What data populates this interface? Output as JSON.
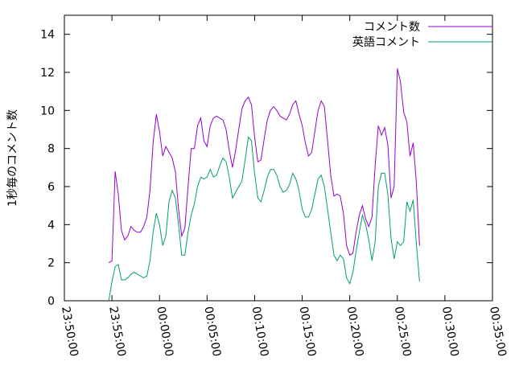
{
  "chart_data": {
    "type": "line",
    "title": "",
    "xlabel": "",
    "ylabel": "1秒毎のコメント数",
    "ylim": [
      0,
      15
    ],
    "y_ticks": [
      0,
      2,
      4,
      6,
      8,
      10,
      12,
      14
    ],
    "x_ticks": [
      "23:50:00",
      "23:55:00",
      "00:00:00",
      "00:05:00",
      "00:10:00",
      "00:15:00",
      "00:20:00",
      "00:25:00",
      "00:30:00",
      "00:35:00"
    ],
    "xlim": [
      "23:50:00",
      "00:35:00"
    ],
    "legend_position": "top-right",
    "grid": false,
    "series": [
      {
        "name": "コメント数",
        "color": "#9400d3",
        "points": [
          [
            "23:54:40",
            2.0
          ],
          [
            "23:55:00",
            2.1
          ],
          [
            "23:55:20",
            6.8
          ],
          [
            "23:55:40",
            5.6
          ],
          [
            "23:56:00",
            3.7
          ],
          [
            "23:56:20",
            3.2
          ],
          [
            "23:56:40",
            3.4
          ],
          [
            "23:57:00",
            3.9
          ],
          [
            "23:57:20",
            3.7
          ],
          [
            "23:57:40",
            3.6
          ],
          [
            "23:58:00",
            3.6
          ],
          [
            "23:58:20",
            3.9
          ],
          [
            "23:58:40",
            4.4
          ],
          [
            "23:59:00",
            5.8
          ],
          [
            "23:59:20",
            8.3
          ],
          [
            "23:59:40",
            9.8
          ],
          [
            "00:00:00",
            8.9
          ],
          [
            "00:00:20",
            7.6
          ],
          [
            "00:00:40",
            8.1
          ],
          [
            "00:01:00",
            7.8
          ],
          [
            "00:01:20",
            7.5
          ],
          [
            "00:01:40",
            6.8
          ],
          [
            "00:02:00",
            4.8
          ],
          [
            "00:02:20",
            3.4
          ],
          [
            "00:02:40",
            3.8
          ],
          [
            "00:03:00",
            6.0
          ],
          [
            "00:03:20",
            8.0
          ],
          [
            "00:03:40",
            8.0
          ],
          [
            "00:04:00",
            9.2
          ],
          [
            "00:04:20",
            9.6
          ],
          [
            "00:04:40",
            8.4
          ],
          [
            "00:05:00",
            8.1
          ],
          [
            "00:05:20",
            9.2
          ],
          [
            "00:05:40",
            9.6
          ],
          [
            "00:06:00",
            9.7
          ],
          [
            "00:06:20",
            9.6
          ],
          [
            "00:06:40",
            9.5
          ],
          [
            "00:07:00",
            9.0
          ],
          [
            "00:07:20",
            7.9
          ],
          [
            "00:07:40",
            7.0
          ],
          [
            "00:08:00",
            7.9
          ],
          [
            "00:08:20",
            9.0
          ],
          [
            "00:08:40",
            10.1
          ],
          [
            "00:09:00",
            10.5
          ],
          [
            "00:09:20",
            10.7
          ],
          [
            "00:09:40",
            10.3
          ],
          [
            "00:10:00",
            8.6
          ],
          [
            "00:10:20",
            7.3
          ],
          [
            "00:10:40",
            7.4
          ],
          [
            "00:11:00",
            8.5
          ],
          [
            "00:11:20",
            9.5
          ],
          [
            "00:11:40",
            10.0
          ],
          [
            "00:12:00",
            10.2
          ],
          [
            "00:12:20",
            10.0
          ],
          [
            "00:12:40",
            9.7
          ],
          [
            "00:13:00",
            9.6
          ],
          [
            "00:13:20",
            9.5
          ],
          [
            "00:13:40",
            9.8
          ],
          [
            "00:14:00",
            10.3
          ],
          [
            "00:14:20",
            10.5
          ],
          [
            "00:14:40",
            9.8
          ],
          [
            "00:15:00",
            9.2
          ],
          [
            "00:15:20",
            8.3
          ],
          [
            "00:15:40",
            7.6
          ],
          [
            "00:16:00",
            7.8
          ],
          [
            "00:16:20",
            8.9
          ],
          [
            "00:16:40",
            10.0
          ],
          [
            "00:17:00",
            10.5
          ],
          [
            "00:17:20",
            10.2
          ],
          [
            "00:17:40",
            8.4
          ],
          [
            "00:18:00",
            6.6
          ],
          [
            "00:18:20",
            5.5
          ],
          [
            "00:18:40",
            5.6
          ],
          [
            "00:19:00",
            5.5
          ],
          [
            "00:19:20",
            4.6
          ],
          [
            "00:19:40",
            2.9
          ],
          [
            "00:20:00",
            2.4
          ],
          [
            "00:20:20",
            2.5
          ],
          [
            "00:20:40",
            3.6
          ],
          [
            "00:21:00",
            4.5
          ],
          [
            "00:21:20",
            5.0
          ],
          [
            "00:21:40",
            4.3
          ],
          [
            "00:22:00",
            3.9
          ],
          [
            "00:22:20",
            4.4
          ],
          [
            "00:22:40",
            7.1
          ],
          [
            "00:23:00",
            9.2
          ],
          [
            "00:23:20",
            8.7
          ],
          [
            "00:23:40",
            9.1
          ],
          [
            "00:24:00",
            8.2
          ],
          [
            "00:24:20",
            5.4
          ],
          [
            "00:24:40",
            6.0
          ],
          [
            "00:25:00",
            12.2
          ],
          [
            "00:25:20",
            11.5
          ],
          [
            "00:25:40",
            9.9
          ],
          [
            "00:26:00",
            9.4
          ],
          [
            "00:26:20",
            7.6
          ],
          [
            "00:26:40",
            8.3
          ],
          [
            "00:27:00",
            6.2
          ],
          [
            "00:27:20",
            2.9
          ]
        ]
      },
      {
        "name": "英語コメント",
        "color": "#009e73",
        "points": [
          [
            "23:54:40",
            0.0
          ],
          [
            "23:55:00",
            1.0
          ],
          [
            "23:55:20",
            1.8
          ],
          [
            "23:55:40",
            1.9
          ],
          [
            "23:56:00",
            1.1
          ],
          [
            "23:56:20",
            1.1
          ],
          [
            "23:56:40",
            1.2
          ],
          [
            "23:57:00",
            1.4
          ],
          [
            "23:57:20",
            1.5
          ],
          [
            "23:57:40",
            1.4
          ],
          [
            "23:58:00",
            1.3
          ],
          [
            "23:58:20",
            1.2
          ],
          [
            "23:58:40",
            1.3
          ],
          [
            "23:59:00",
            2.1
          ],
          [
            "23:59:20",
            3.6
          ],
          [
            "23:59:40",
            4.6
          ],
          [
            "00:00:00",
            4.0
          ],
          [
            "00:00:20",
            2.9
          ],
          [
            "00:00:40",
            3.4
          ],
          [
            "00:01:00",
            5.2
          ],
          [
            "00:01:20",
            5.8
          ],
          [
            "00:01:40",
            5.4
          ],
          [
            "00:02:00",
            4.0
          ],
          [
            "00:02:20",
            2.4
          ],
          [
            "00:02:40",
            2.4
          ],
          [
            "00:03:00",
            3.6
          ],
          [
            "00:03:20",
            4.5
          ],
          [
            "00:03:40",
            5.1
          ],
          [
            "00:04:00",
            6.0
          ],
          [
            "00:04:20",
            6.5
          ],
          [
            "00:04:40",
            6.4
          ],
          [
            "00:05:00",
            6.5
          ],
          [
            "00:05:20",
            6.9
          ],
          [
            "00:05:40",
            6.5
          ],
          [
            "00:06:00",
            6.6
          ],
          [
            "00:06:20",
            7.1
          ],
          [
            "00:06:40",
            7.5
          ],
          [
            "00:07:00",
            7.3
          ],
          [
            "00:07:20",
            6.5
          ],
          [
            "00:07:40",
            5.4
          ],
          [
            "00:08:00",
            5.7
          ],
          [
            "00:08:20",
            6.0
          ],
          [
            "00:08:40",
            6.3
          ],
          [
            "00:09:00",
            7.4
          ],
          [
            "00:09:20",
            8.6
          ],
          [
            "00:09:40",
            8.4
          ],
          [
            "00:10:00",
            6.7
          ],
          [
            "00:10:20",
            5.4
          ],
          [
            "00:10:40",
            5.2
          ],
          [
            "00:11:00",
            5.8
          ],
          [
            "00:11:20",
            6.5
          ],
          [
            "00:11:40",
            6.9
          ],
          [
            "00:12:00",
            6.9
          ],
          [
            "00:12:20",
            6.6
          ],
          [
            "00:12:40",
            6.0
          ],
          [
            "00:13:00",
            5.7
          ],
          [
            "00:13:20",
            5.8
          ],
          [
            "00:13:40",
            6.1
          ],
          [
            "00:14:00",
            6.7
          ],
          [
            "00:14:20",
            6.4
          ],
          [
            "00:14:40",
            5.8
          ],
          [
            "00:15:00",
            4.8
          ],
          [
            "00:15:20",
            4.4
          ],
          [
            "00:15:40",
            4.4
          ],
          [
            "00:16:00",
            4.8
          ],
          [
            "00:16:20",
            5.6
          ],
          [
            "00:16:40",
            6.4
          ],
          [
            "00:17:00",
            6.6
          ],
          [
            "00:17:20",
            6.0
          ],
          [
            "00:17:40",
            4.8
          ],
          [
            "00:18:00",
            3.6
          ],
          [
            "00:18:20",
            2.4
          ],
          [
            "00:18:40",
            2.1
          ],
          [
            "00:19:00",
            2.4
          ],
          [
            "00:19:20",
            2.2
          ],
          [
            "00:19:40",
            1.2
          ],
          [
            "00:20:00",
            0.9
          ],
          [
            "00:20:20",
            1.5
          ],
          [
            "00:20:40",
            2.6
          ],
          [
            "00:21:00",
            3.6
          ],
          [
            "00:21:20",
            4.5
          ],
          [
            "00:21:40",
            4.0
          ],
          [
            "00:22:00",
            3.2
          ],
          [
            "00:22:20",
            2.1
          ],
          [
            "00:22:40",
            3.1
          ],
          [
            "00:23:00",
            6.0
          ],
          [
            "00:23:20",
            6.7
          ],
          [
            "00:23:40",
            6.7
          ],
          [
            "00:24:00",
            5.6
          ],
          [
            "00:24:20",
            3.3
          ],
          [
            "00:24:40",
            2.2
          ],
          [
            "00:25:00",
            3.1
          ],
          [
            "00:25:20",
            2.9
          ],
          [
            "00:25:40",
            3.1
          ],
          [
            "00:26:00",
            5.2
          ],
          [
            "00:26:20",
            4.7
          ],
          [
            "00:26:40",
            5.3
          ],
          [
            "00:27:00",
            3.0
          ],
          [
            "00:27:20",
            1.0
          ]
        ]
      }
    ]
  }
}
